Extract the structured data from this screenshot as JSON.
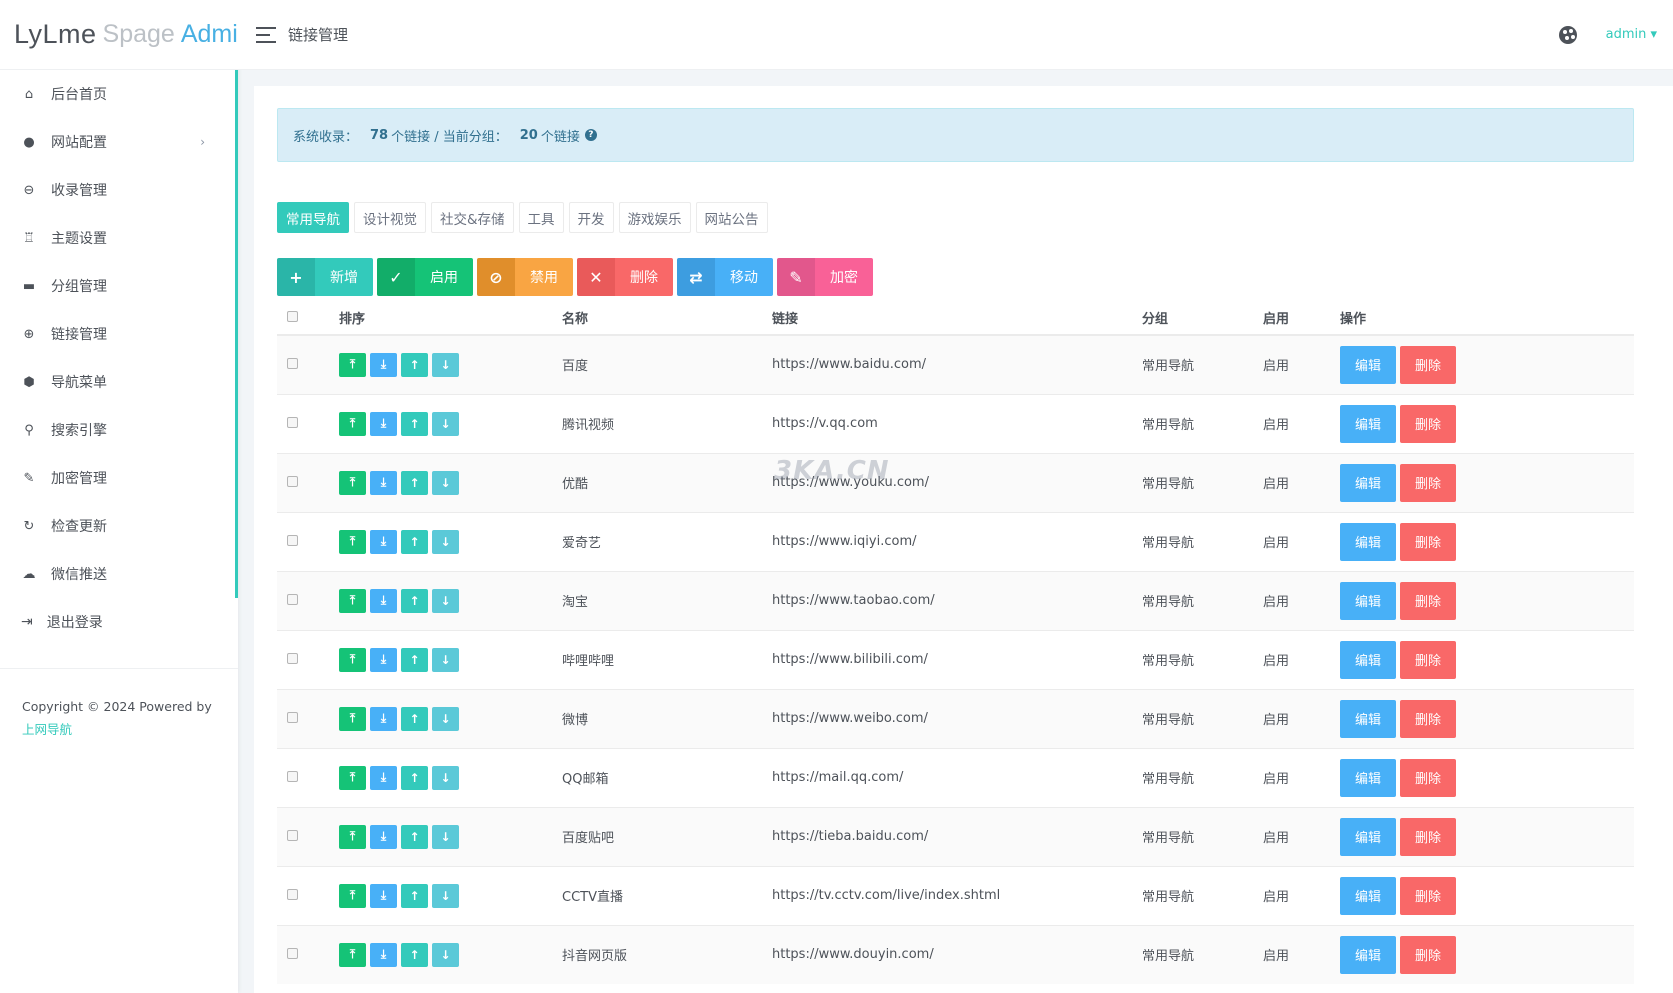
{
  "logo": {
    "part1": "LyLme",
    "part2": "Spage",
    "part3": "Admin"
  },
  "header": {
    "title": "链接管理",
    "user": "admin ▾"
  },
  "sidebar": {
    "items": [
      {
        "label": "后台首页",
        "icon": "home-icon",
        "glyph": "⌂"
      },
      {
        "label": "网站配置",
        "icon": "palette-icon",
        "glyph": "●",
        "chevron": "›"
      },
      {
        "label": "收录管理",
        "icon": "link-icon",
        "glyph": "⊖"
      },
      {
        "label": "主题设置",
        "icon": "badge-icon",
        "glyph": "♖"
      },
      {
        "label": "分组管理",
        "icon": "folder-icon",
        "glyph": "▬"
      },
      {
        "label": "链接管理",
        "icon": "globe-icon",
        "glyph": "⊕"
      },
      {
        "label": "导航菜单",
        "icon": "cube-icon",
        "glyph": "⬢"
      },
      {
        "label": "搜索引擎",
        "icon": "search-icon",
        "glyph": "⚲"
      },
      {
        "label": "加密管理",
        "icon": "wrench-icon",
        "glyph": "✎"
      },
      {
        "label": "检查更新",
        "icon": "refresh-icon",
        "glyph": "↻"
      },
      {
        "label": "微信推送",
        "icon": "wechat-icon",
        "glyph": "☁"
      }
    ],
    "logout": {
      "label": "退出登录",
      "icon": "logout-icon",
      "glyph": "⇥"
    },
    "copyright": "Copyright © 2024 Powered by",
    "powered_link": "上网导航"
  },
  "alert": {
    "prefix": "系统收录：",
    "total": "78",
    "mid": "个链接 / 当前分组：",
    "group_count": "20",
    "suffix": "个链接",
    "help": "?"
  },
  "tabs": [
    "常用导航",
    "设计视觉",
    "社交&存储",
    "工具",
    "开发",
    "游戏娱乐",
    "网站公告"
  ],
  "actions": [
    {
      "label": "新增",
      "glyph": "+",
      "icon": "plus-icon",
      "c1": "#2ab5a8",
      "c2": "#33cabb"
    },
    {
      "label": "启用",
      "glyph": "✓",
      "icon": "check-icon",
      "c1": "#12ad69",
      "c2": "#15c377"
    },
    {
      "label": "禁用",
      "glyph": "⊘",
      "icon": "ban-icon",
      "c1": "#e08e2b",
      "c2": "#f9a543"
    },
    {
      "label": "删除",
      "glyph": "✕",
      "icon": "close-icon",
      "c1": "#e95a5a",
      "c2": "#f96868"
    },
    {
      "label": "移动",
      "glyph": "⇄",
      "icon": "move-icon",
      "c1": "#3d9de0",
      "c2": "#48b0f7"
    },
    {
      "label": "加密",
      "glyph": "✎",
      "icon": "key-icon",
      "c1": "#e2578c",
      "c2": "#f96197"
    }
  ],
  "table": {
    "headers": [
      "排序",
      "名称",
      "链接",
      "分组",
      "启用",
      "操作"
    ],
    "rows": [
      {
        "name": "百度",
        "url": "https://www.baidu.com/",
        "group": "常用导航",
        "status": "启用"
      },
      {
        "name": "腾讯视频",
        "url": "https://v.qq.com",
        "group": "常用导航",
        "status": "启用"
      },
      {
        "name": "优酷",
        "url": "https://www.youku.com/",
        "group": "常用导航",
        "status": "启用"
      },
      {
        "name": "爱奇艺",
        "url": "https://www.iqiyi.com/",
        "group": "常用导航",
        "status": "启用"
      },
      {
        "name": "淘宝",
        "url": "https://www.taobao.com/",
        "group": "常用导航",
        "status": "启用"
      },
      {
        "name": "哔哩哔哩",
        "url": "https://www.bilibili.com/",
        "group": "常用导航",
        "status": "启用"
      },
      {
        "name": "微博",
        "url": "https://www.weibo.com/",
        "group": "常用导航",
        "status": "启用"
      },
      {
        "name": "QQ邮箱",
        "url": "https://mail.qq.com/",
        "group": "常用导航",
        "status": "启用"
      },
      {
        "name": "百度贴吧",
        "url": "https://tieba.baidu.com/",
        "group": "常用导航",
        "status": "启用"
      },
      {
        "name": "CCTV直播",
        "url": "https://tv.cctv.com/live/index.shtml",
        "group": "常用导航",
        "status": "启用"
      },
      {
        "name": "抖音网页版",
        "url": "https://www.douyin.com/",
        "group": "常用导航",
        "status": "启用"
      }
    ],
    "sort_buttons": [
      {
        "glyph": "⤒",
        "icon": "to-top-icon",
        "color": "#15c377"
      },
      {
        "glyph": "⤓",
        "icon": "to-bottom-icon",
        "color": "#48b0f7"
      },
      {
        "glyph": "↑",
        "icon": "arrow-up-icon",
        "color": "#33cabb"
      },
      {
        "glyph": "↓",
        "icon": "arrow-down-icon",
        "color": "#5bc9d8"
      }
    ],
    "edit_label": "编辑",
    "delete_label": "删除"
  },
  "watermark": "3KA.CN",
  "colors": {
    "primary": "#33cabb",
    "info": "#48b0f7",
    "danger": "#f96868",
    "success": "#15c377"
  }
}
